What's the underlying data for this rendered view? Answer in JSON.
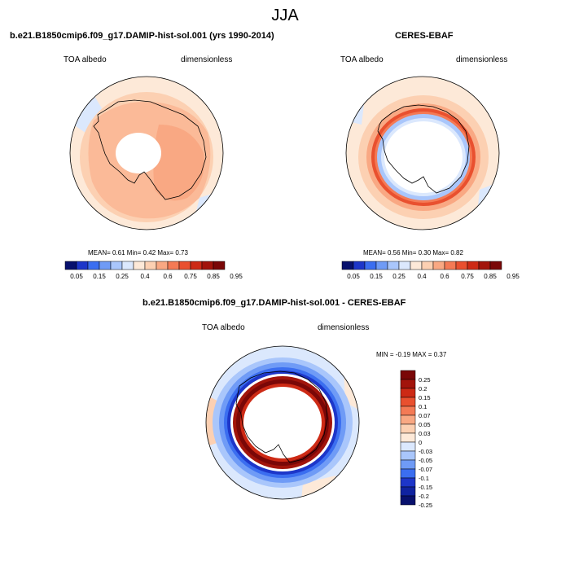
{
  "figure_title": "JJA",
  "panels": [
    {
      "title": "b.e21.B1850cmip6.f09_g17.DAMIP-hist-sol.001 (yrs 1990-2014)",
      "left_label": "TOA albedo",
      "right_label": "dimensionless",
      "stats": "MEAN=  0.61  Min=  0.42  Max=  0.73"
    },
    {
      "title": "CERES-EBAF",
      "left_label": "TOA albedo",
      "right_label": "dimensionless",
      "stats": "MEAN=  0.56  Min=  0.30  Max=  0.82"
    },
    {
      "title": "b.e21.B1850cmip6.f09_g17.DAMIP-hist-sol.001 - CERES-EBAF",
      "left_label": "TOA albedo",
      "right_label": "dimensionless",
      "stats": "MIN =  -0.19 MAX =   0.37"
    }
  ],
  "colorbar_abs": {
    "colors": [
      "#08116d",
      "#1d36c9",
      "#3b6ef0",
      "#6f9bf6",
      "#a9c6fb",
      "#dbe8fd",
      "#fde9d8",
      "#fcd0b2",
      "#f9a883",
      "#f47a55",
      "#e9502f",
      "#cd2a15",
      "#a2140b",
      "#7a0707"
    ],
    "labels": [
      "0.05",
      "0.15",
      "0.25",
      "0.4",
      "0.6",
      "0.75",
      "0.85",
      "0.95"
    ]
  },
  "colorbar_diff": {
    "colors": [
      "#7a0707",
      "#a2140b",
      "#cd2a15",
      "#e9502f",
      "#f47a55",
      "#f9a883",
      "#fcd0b2",
      "#fde9d8",
      "#dbe8fd",
      "#a9c6fb",
      "#6f9bf6",
      "#3b6ef0",
      "#1d36c9",
      "#1023a0",
      "#08116d"
    ],
    "labels": [
      "0.25",
      "0.2",
      "0.15",
      "0.1",
      "0.07",
      "0.05",
      "0.03",
      "0",
      "-0.03",
      "-0.05",
      "-0.07",
      "-0.1",
      "-0.15",
      "-0.2",
      "-0.25"
    ]
  }
}
